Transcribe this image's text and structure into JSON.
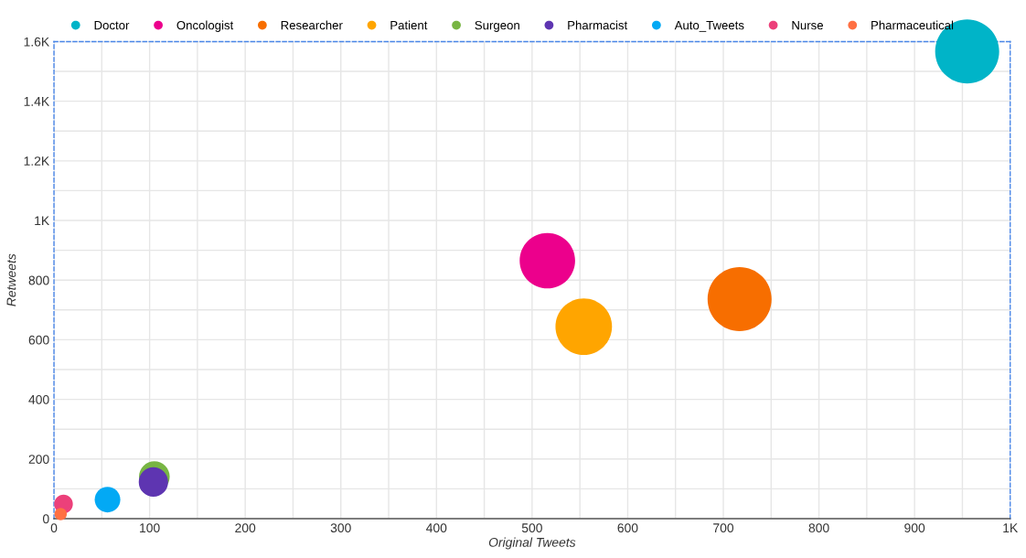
{
  "chart_data": {
    "type": "bubble",
    "xlabel": "Original Tweets",
    "ylabel": "Retweets",
    "xlim": [
      0,
      1000
    ],
    "xticks": [
      0,
      100,
      200,
      300,
      400,
      500,
      600,
      700,
      800,
      900,
      {
        "value": 1000,
        "label": "1K"
      }
    ],
    "ylim": [
      0,
      1600
    ],
    "yticks": [
      0,
      200,
      400,
      600,
      800,
      {
        "value": 1000,
        "label": "1K"
      },
      {
        "value": 1200,
        "label": "1.2K"
      },
      {
        "value": 1400,
        "label": "1.4K"
      },
      {
        "value": 1600,
        "label": "1.6K"
      }
    ],
    "grid": true,
    "legend": "top",
    "marker": "circle",
    "series": [
      {
        "name": "Doctor",
        "color": "#00b4c8",
        "x": [
          955
        ],
        "values": [
          1567
        ],
        "sizes": [
          1.0
        ]
      },
      {
        "name": "Oncologist",
        "color": "#ec008c",
        "x": [
          516
        ],
        "values": [
          865
        ],
        "sizes": [
          0.75
        ]
      },
      {
        "name": "Researcher",
        "color": "#f76e00",
        "x": [
          717
        ],
        "values": [
          736
        ],
        "sizes": [
          1.0
        ]
      },
      {
        "name": "Patient",
        "color": "#ffa500",
        "x": [
          554
        ],
        "values": [
          644
        ],
        "sizes": [
          0.78
        ]
      },
      {
        "name": "Surgeon",
        "color": "#78b543",
        "x": [
          105
        ],
        "values": [
          141
        ],
        "sizes": [
          0.23
        ]
      },
      {
        "name": "Pharmacist",
        "color": "#5e35b1",
        "x": [
          104
        ],
        "values": [
          123
        ],
        "sizes": [
          0.21
        ]
      },
      {
        "name": "Auto_Tweets",
        "color": "#03a9f4",
        "x": [
          56
        ],
        "values": [
          64
        ],
        "sizes": [
          0.16
        ]
      },
      {
        "name": "Nurse",
        "color": "#ec407a",
        "x": [
          10
        ],
        "values": [
          49
        ],
        "sizes": [
          0.085
        ]
      },
      {
        "name": "Pharmaceutical",
        "color": "#ff7043",
        "x": [
          7
        ],
        "values": [
          15
        ],
        "sizes": [
          0.037
        ]
      }
    ]
  }
}
